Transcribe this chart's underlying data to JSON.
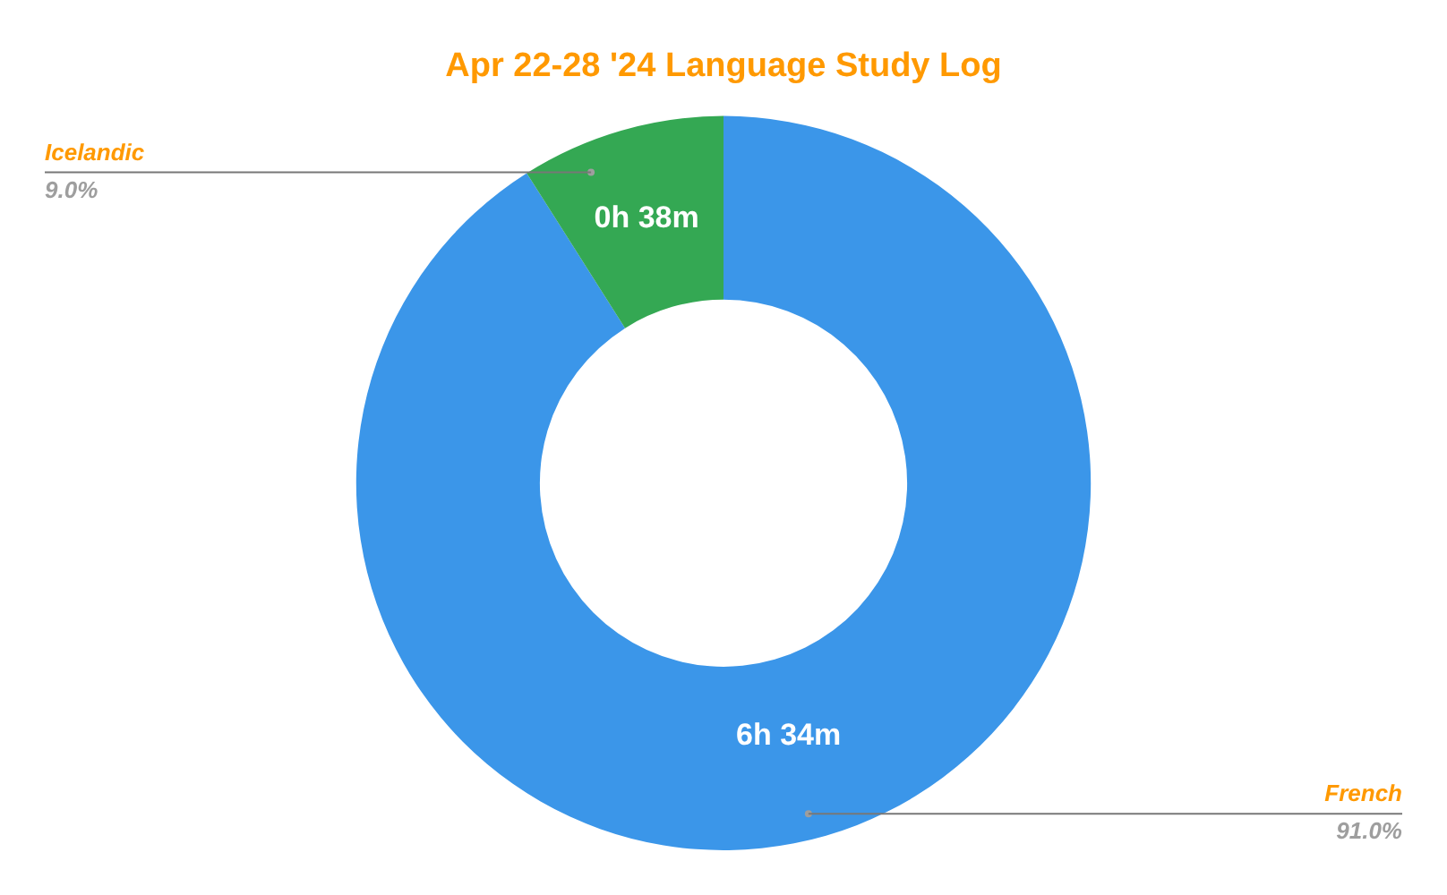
{
  "chart_data": {
    "type": "donut",
    "title": "Apr 22-28 '24 Language Study Log",
    "categories": [
      "French",
      "Icelandic"
    ],
    "values": [
      91.0,
      9.0
    ],
    "colors": [
      "#3b96e9",
      "#34a853"
    ],
    "value_labels": [
      "91.0%",
      "9.0%"
    ],
    "annotations": [
      "6h 34m",
      "0h 38m"
    ],
    "legend": false
  }
}
